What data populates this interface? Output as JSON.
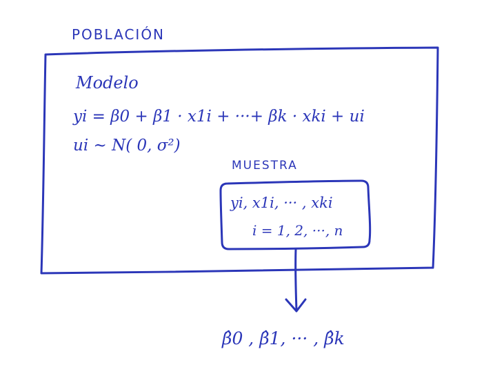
{
  "diagram": {
    "population_label": "POBLACIÓN",
    "model_label": "Modelo",
    "model_equation": "yi = β0 + β1 · x1i + ···+ βk · xki + ui",
    "error_distribution": "ui ~ N( 0, σ²)",
    "sample_label": "MUESTRA",
    "sample_variables": "yi, x1i, ··· , xki",
    "sample_index": "i = 1, 2, ···, n",
    "estimates": "β̂0 , β̂1, ··· , β̂k"
  },
  "colors": {
    "ink": "#2b36b8",
    "background": "#ffffff"
  }
}
